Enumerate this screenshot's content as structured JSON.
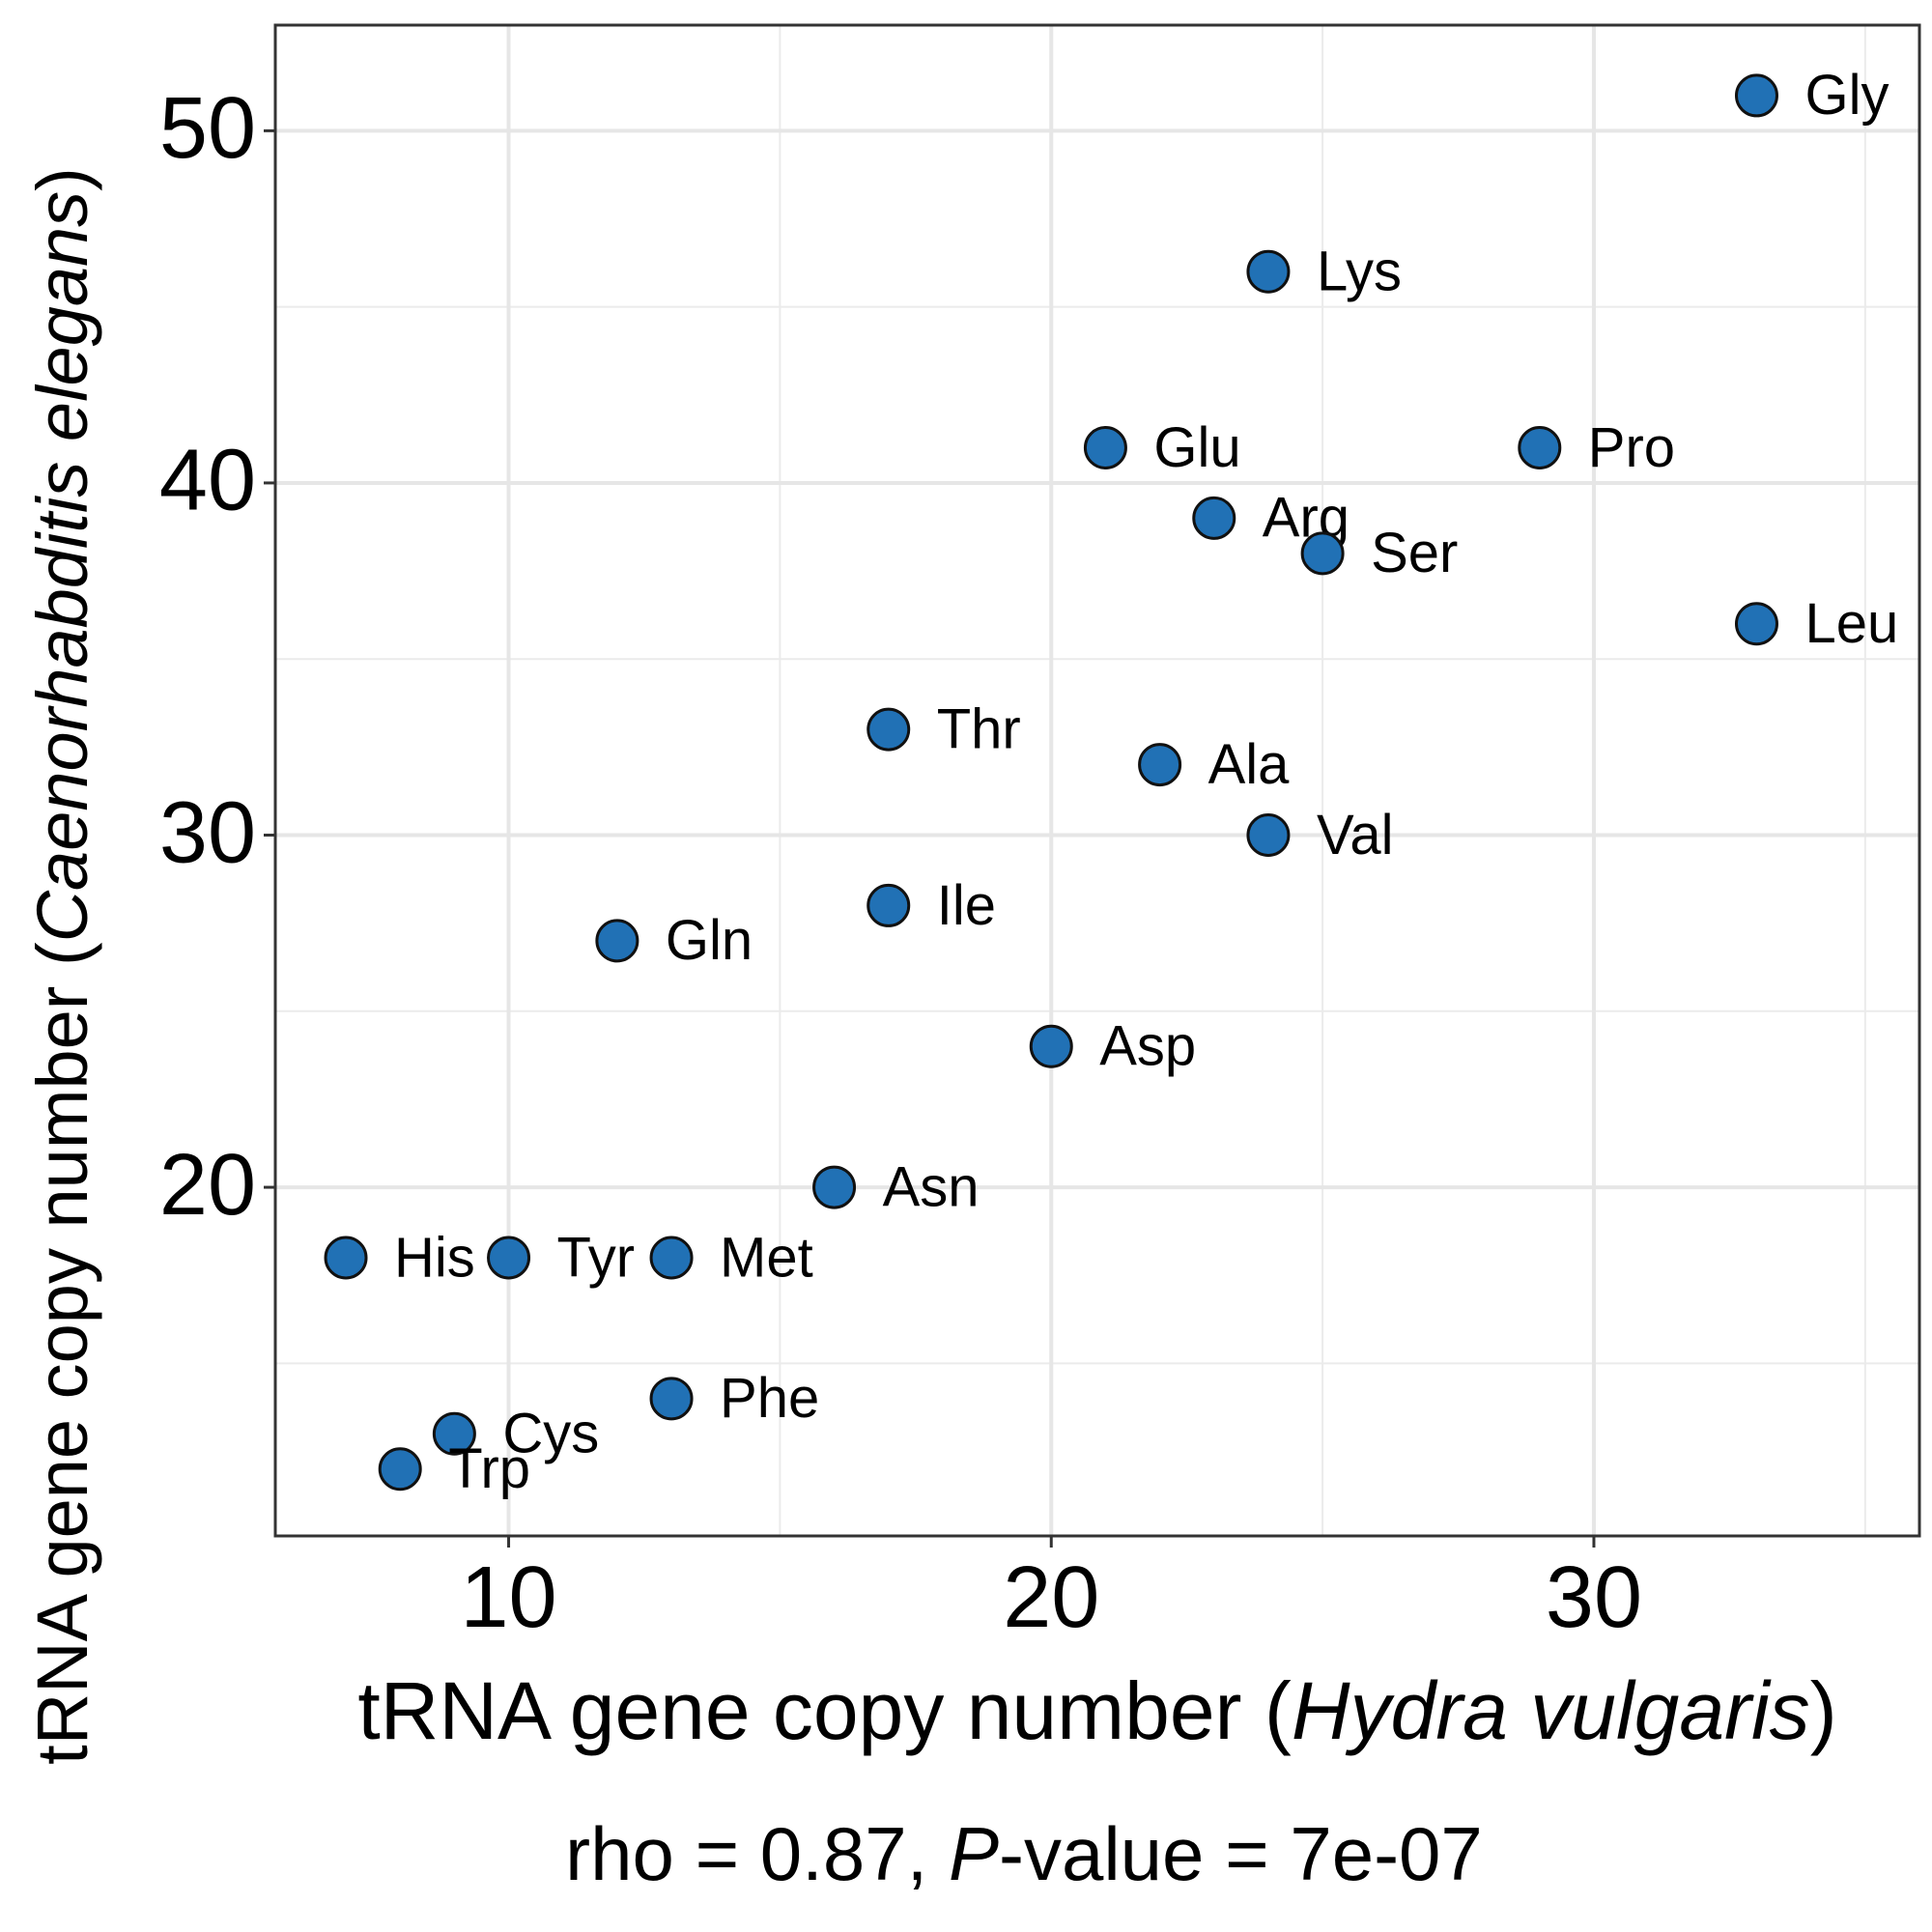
{
  "chart_data": {
    "type": "scatter",
    "xlabel": [
      "tRNA gene copy number (",
      "Hydra vulgaris",
      ")"
    ],
    "ylabel": [
      "tRNA gene copy number (",
      "Caenorhabditis elegans",
      ")"
    ],
    "subtitle": [
      "rho = 0.87, ",
      "P",
      "-value = 7e-07"
    ],
    "labels": [
      "Gly",
      "Lys",
      "Glu",
      "Pro",
      "Arg",
      "Ser",
      "Leu",
      "Thr",
      "Ala",
      "Val",
      "Ile",
      "Gln",
      "Asp",
      "Asn",
      "His",
      "Tyr",
      "Met",
      "Phe",
      "Cys",
      "Trp"
    ],
    "x": [
      33,
      24,
      21,
      29,
      23,
      25,
      33,
      17,
      22,
      24,
      17,
      12,
      20,
      16,
      7,
      10,
      13,
      13,
      9,
      8
    ],
    "y": [
      51,
      46,
      41,
      41,
      39,
      38,
      36,
      33,
      32,
      30,
      28,
      27,
      24,
      20,
      18,
      18,
      18,
      14,
      13,
      12
    ],
    "color": "#2171b5",
    "xlim": [
      5.7,
      36
    ],
    "ylim": [
      10.1,
      53
    ],
    "xticks": [
      10,
      20,
      30
    ],
    "yticks": [
      20,
      30,
      40,
      50
    ],
    "grid": true
  }
}
